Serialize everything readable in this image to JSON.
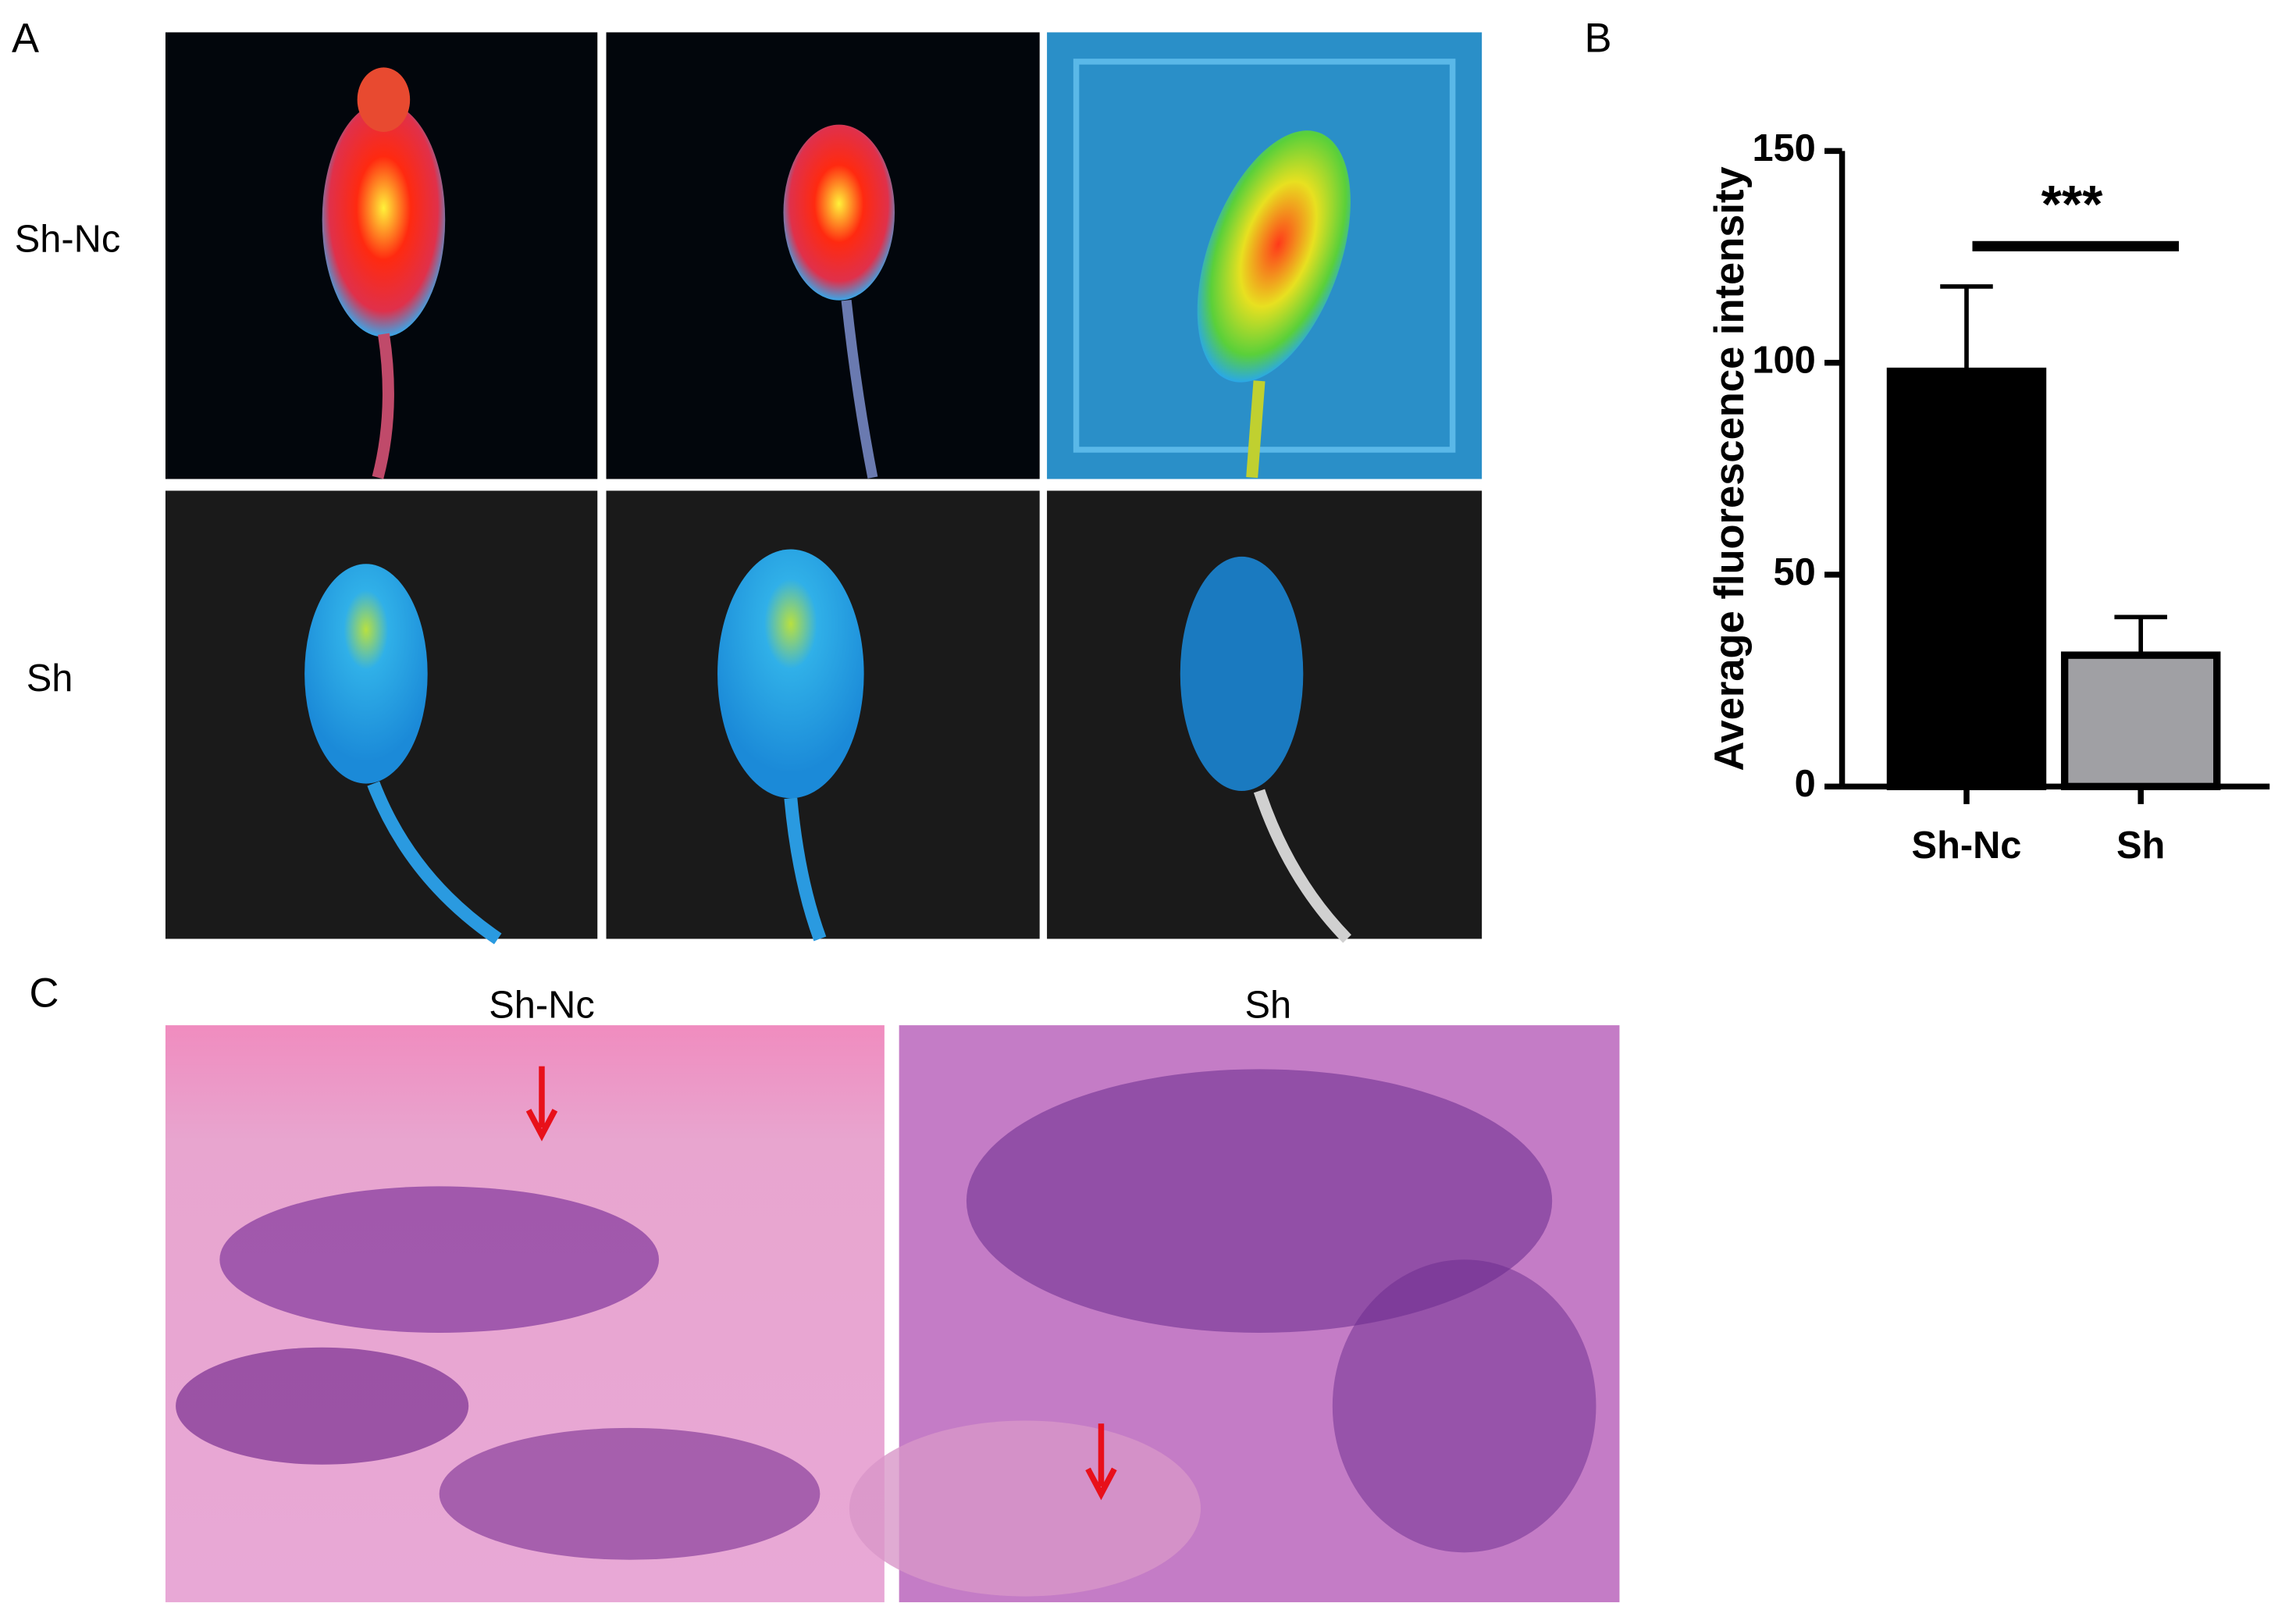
{
  "panels": {
    "a": {
      "label": "A",
      "rows": [
        "Sh-Nc",
        "Sh"
      ]
    },
    "c": {
      "label": "C",
      "columns": [
        "Sh-Nc",
        "Sh"
      ]
    }
  },
  "chart_data": {
    "type": "bar",
    "panel_label": "B",
    "y_label": "Average fluorescence intensity",
    "categories": [
      "Sh-Nc",
      "Sh"
    ],
    "values": [
      98,
      31
    ],
    "errors": [
      20,
      9
    ],
    "colors": [
      "#000000",
      "#a0a0a4"
    ],
    "ylim": [
      0,
      150
    ],
    "yticks": [
      0,
      50,
      100,
      150
    ],
    "significance": "***"
  }
}
